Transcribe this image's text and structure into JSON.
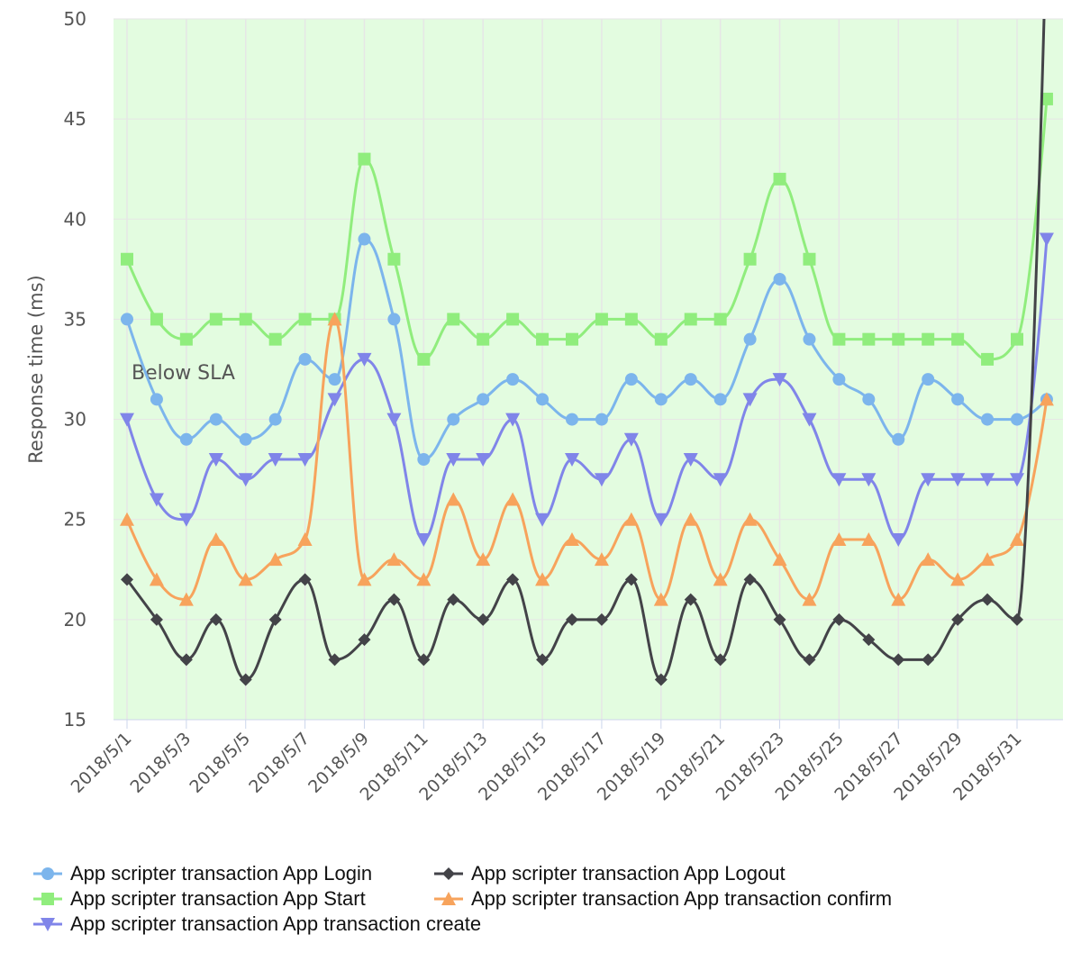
{
  "chart_data": {
    "type": "line",
    "ylabel": "Response time (ms)",
    "ylim": [
      15,
      50
    ],
    "yticks": [
      15,
      20,
      25,
      30,
      35,
      40,
      45,
      50
    ],
    "grid": true,
    "plot_band_label": "Below SLA",
    "plot_band_color": "#e3fce0",
    "legend_position": "bottom",
    "categories": [
      "2018/5/1",
      "2018/5/2",
      "2018/5/3",
      "2018/5/4",
      "2018/5/5",
      "2018/5/6",
      "2018/5/7",
      "2018/5/8",
      "2018/5/9",
      "2018/5/10",
      "2018/5/11",
      "2018/5/12",
      "2018/5/13",
      "2018/5/14",
      "2018/5/15",
      "2018/5/16",
      "2018/5/17",
      "2018/5/18",
      "2018/5/19",
      "2018/5/20",
      "2018/5/21",
      "2018/5/22",
      "2018/5/23",
      "2018/5/24",
      "2018/5/25",
      "2018/5/26",
      "2018/5/27",
      "2018/5/28",
      "2018/5/29",
      "2018/5/30",
      "2018/5/31",
      "2018/6/1"
    ],
    "tick_label_interval": 2,
    "series": [
      {
        "name": "App scripter transaction App Login",
        "color": "#7cb5ec",
        "marker": "circle",
        "values": [
          35,
          31,
          29,
          30,
          29,
          30,
          33,
          32,
          39,
          35,
          28,
          30,
          31,
          32,
          31,
          30,
          30,
          32,
          31,
          32,
          31,
          34,
          37,
          34,
          32,
          31,
          29,
          32,
          31,
          30,
          30,
          31
        ]
      },
      {
        "name": "App scripter transaction App Start",
        "color": "#90ed7d",
        "marker": "square",
        "values": [
          38,
          35,
          34,
          35,
          35,
          34,
          35,
          35,
          43,
          38,
          33,
          35,
          34,
          35,
          34,
          34,
          35,
          35,
          34,
          35,
          35,
          38,
          42,
          38,
          34,
          34,
          34,
          34,
          34,
          33,
          34,
          46
        ]
      },
      {
        "name": "App scripter transaction App transaction create",
        "color": "#8085e9",
        "marker": "triangle-down",
        "values": [
          30,
          26,
          25,
          28,
          27,
          28,
          28,
          31,
          33,
          30,
          24,
          28,
          28,
          30,
          25,
          28,
          27,
          29,
          25,
          28,
          27,
          31,
          32,
          30,
          27,
          27,
          24,
          27,
          27,
          27,
          27,
          39
        ]
      },
      {
        "name": "App scripter transaction App Logout",
        "color": "#434348",
        "marker": "diamond",
        "values": [
          22,
          20,
          18,
          20,
          17,
          20,
          22,
          18,
          19,
          21,
          18,
          21,
          20,
          22,
          18,
          20,
          20,
          22,
          17,
          21,
          18,
          22,
          20,
          18,
          20,
          19,
          18,
          18,
          20,
          21,
          20,
          55
        ]
      },
      {
        "name": "App scripter transaction App transaction confirm",
        "color": "#f7a35c",
        "marker": "triangle",
        "values": [
          25,
          22,
          21,
          24,
          22,
          23,
          24,
          35,
          22,
          23,
          22,
          26,
          23,
          26,
          22,
          24,
          23,
          25,
          21,
          25,
          22,
          25,
          23,
          21,
          24,
          24,
          21,
          23,
          22,
          23,
          24,
          31
        ]
      }
    ]
  }
}
